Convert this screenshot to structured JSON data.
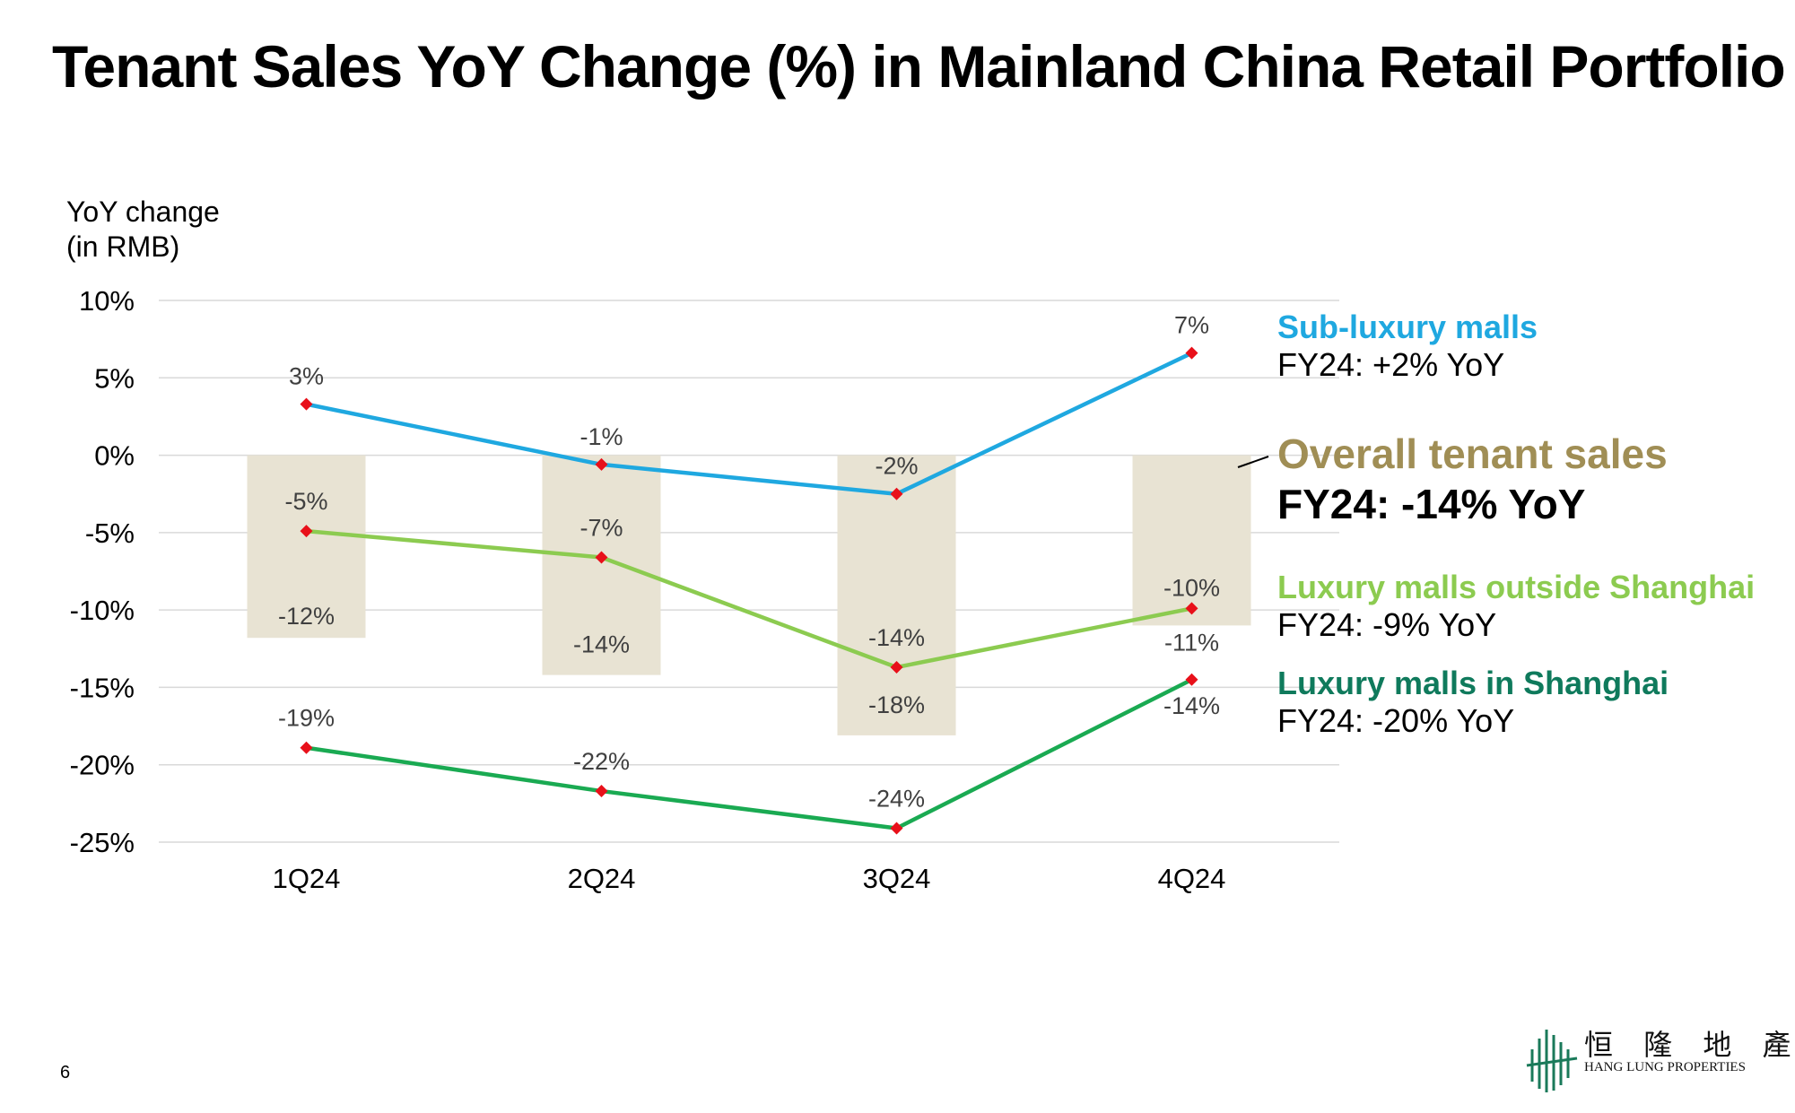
{
  "page": {
    "title": "Tenant Sales YoY Change (%) in Mainland China Retail Portfolio",
    "page_number": "6"
  },
  "logo": {
    "chinese": "恒 隆 地 產",
    "english": "HANG LUNG PROPERTIES"
  },
  "legend": {
    "sub_luxury": {
      "name": "Sub-luxury malls",
      "value": "FY24: +2% YoY"
    },
    "overall": {
      "name": "Overall tenant sales",
      "value": "FY24: -14% YoY"
    },
    "luxury_outside": {
      "name": "Luxury malls outside Shanghai",
      "value": "FY24: -9% YoY"
    },
    "luxury_shanghai": {
      "name": "Luxury malls in Shanghai",
      "value": "FY24: -20% YoY"
    }
  },
  "colors": {
    "sub_luxury": "#1FA8E0",
    "luxury_outside": "#8CCB50",
    "luxury_shanghai": "#1AAA52",
    "luxury_shanghai_label": "#0F7A5C",
    "overall_bar": "#E8E3D3",
    "overall_label": "#A08E55",
    "marker": "#E8101A",
    "grid": "#D9D9D9",
    "data_label": "#404040"
  },
  "chart_data": {
    "type": "bar",
    "title": "Tenant Sales YoY Change (%) in Mainland China Retail Portfolio",
    "ylabel_lines": [
      "YoY change",
      "(in RMB)"
    ],
    "xlabel": "",
    "ylim": [
      -25,
      10
    ],
    "yticks": [
      10,
      5,
      0,
      -5,
      -10,
      -15,
      -20,
      -25
    ],
    "ytick_labels": [
      "10%",
      "5%",
      "0%",
      "-5%",
      "-10%",
      "-15%",
      "-20%",
      "-25%"
    ],
    "grid": true,
    "categories": [
      "1Q24",
      "2Q24",
      "3Q24",
      "4Q24"
    ],
    "bars": {
      "name": "Overall tenant sales",
      "values": [
        -11.8,
        -14.2,
        -18.1,
        -11.0
      ],
      "labels": [
        "-12%",
        "-14%",
        "-18%",
        "-11%"
      ]
    },
    "series": [
      {
        "name": "Sub-luxury malls",
        "type": "line",
        "values": [
          3.3,
          -0.6,
          -2.5,
          6.6
        ],
        "labels": [
          "3%",
          "-1%",
          "-2%",
          "7%"
        ]
      },
      {
        "name": "Luxury malls outside Shanghai",
        "type": "line",
        "values": [
          -4.9,
          -6.6,
          -13.7,
          -9.9
        ],
        "labels": [
          "-5%",
          "-7%",
          "-14%",
          "-10%"
        ]
      },
      {
        "name": "Luxury malls in Shanghai",
        "type": "line",
        "values": [
          -18.9,
          -21.7,
          -24.1,
          -14.5
        ],
        "labels": [
          "-19%",
          "-22%",
          "-24%",
          "-14%"
        ]
      }
    ]
  }
}
